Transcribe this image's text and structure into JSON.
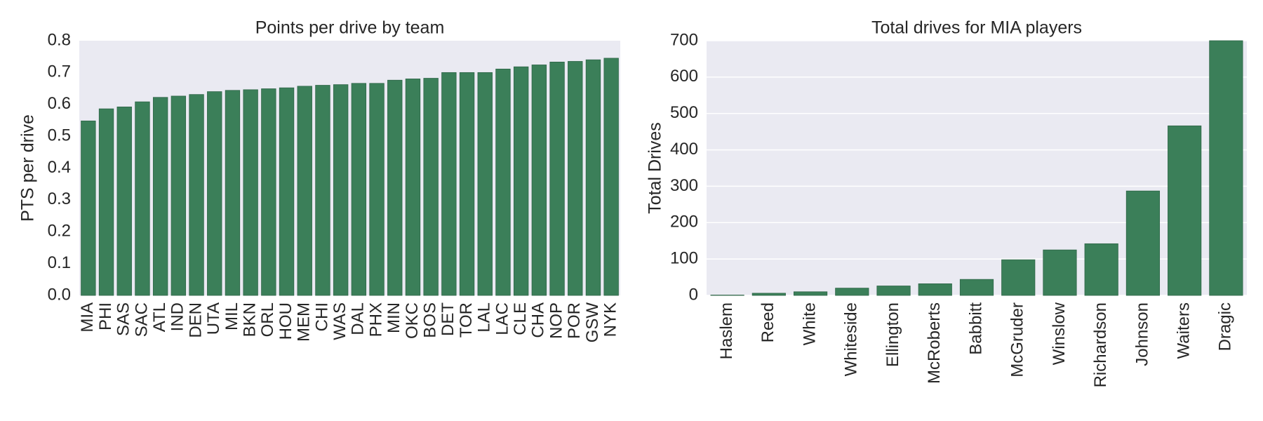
{
  "chart_data": [
    {
      "type": "bar",
      "title": "Points per drive by team",
      "y_label": "PTS per drive",
      "categories": [
        "MIA",
        "PHI",
        "SAS",
        "SAC",
        "ATL",
        "IND",
        "DEN",
        "UTA",
        "MIL",
        "BKN",
        "ORL",
        "HOU",
        "MEM",
        "CHI",
        "WAS",
        "DAL",
        "PHX",
        "MIN",
        "OKC",
        "BOS",
        "DET",
        "TOR",
        "LAL",
        "LAC",
        "CLE",
        "CHA",
        "NOP",
        "POR",
        "GSW",
        "NYK"
      ],
      "values": [
        0.548,
        0.586,
        0.592,
        0.608,
        0.622,
        0.626,
        0.631,
        0.64,
        0.644,
        0.646,
        0.649,
        0.652,
        0.657,
        0.66,
        0.662,
        0.666,
        0.666,
        0.676,
        0.68,
        0.682,
        0.7,
        0.7,
        0.7,
        0.711,
        0.718,
        0.724,
        0.733,
        0.735,
        0.74,
        0.745
      ],
      "color": "#3b7f59",
      "ylim": [
        0,
        0.8
      ],
      "yticks": [
        {
          "value": 0,
          "label": "0.0"
        },
        0.1,
        0.2,
        0.3,
        0.4,
        0.5,
        0.6,
        0.7,
        0.8
      ],
      "grid": false
    },
    {
      "type": "bar",
      "title": "Total drives for MIA players",
      "y_label": "Total Drives",
      "categories": [
        "Haslem",
        "Reed",
        "White",
        "Whiteside",
        "Ellington",
        "McRoberts",
        "Babbitt",
        "McGruder",
        "Winslow",
        "Richardson",
        "Johnson",
        "Waiters",
        "Dragic"
      ],
      "values": [
        1,
        6,
        10,
        20,
        26,
        32,
        44,
        98,
        125,
        142,
        287,
        466,
        700
      ],
      "color": "#3b7f59",
      "ylim": [
        0,
        700
      ],
      "yticks": [
        0,
        100,
        200,
        300,
        400,
        500,
        600,
        700
      ],
      "grid": true
    }
  ]
}
